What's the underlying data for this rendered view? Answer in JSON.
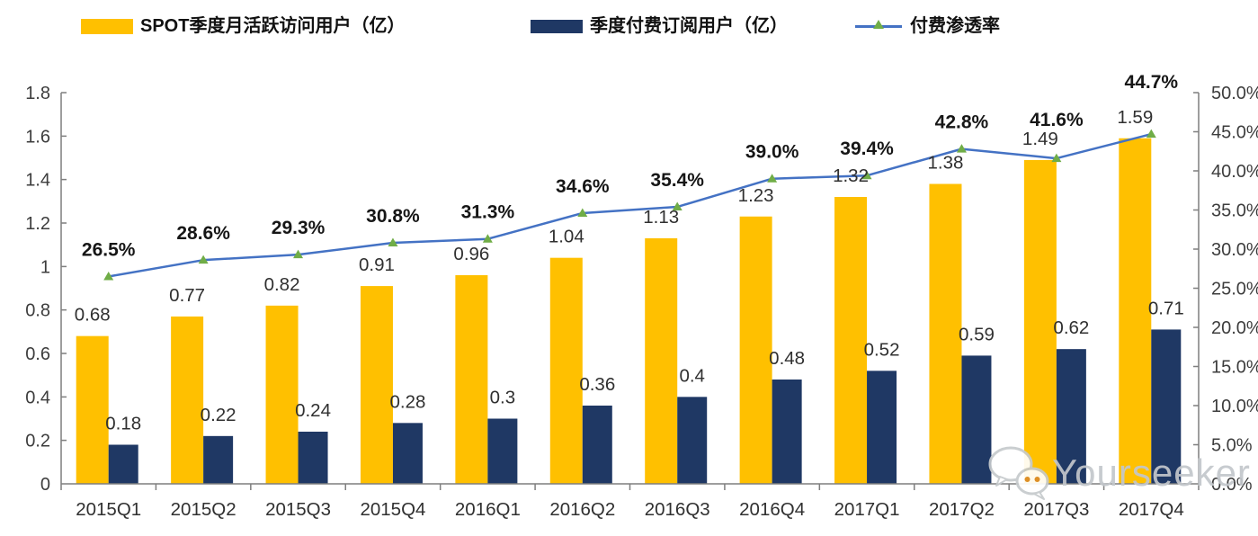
{
  "legend": {
    "items": [
      {
        "label": "SPOT季度月活跃访问用户（亿）",
        "swatch": "bar",
        "color": "#FFC000"
      },
      {
        "label": "季度付费订阅用户（亿）",
        "swatch": "bar",
        "color": "#1F3864"
      },
      {
        "label": "付费渗透率",
        "swatch": "line",
        "color": "#4472C4",
        "marker_color": "#70AD47"
      }
    ]
  },
  "watermark": {
    "text": "Yourseeker",
    "icon": "wechat-icon"
  },
  "chart_data": {
    "type": "combo-bar-line",
    "categories": [
      "2015Q1",
      "2015Q2",
      "2015Q3",
      "2015Q4",
      "2016Q1",
      "2016Q2",
      "2016Q3",
      "2016Q4",
      "2017Q1",
      "2017Q2",
      "2017Q3",
      "2017Q4"
    ],
    "series": [
      {
        "name": "SPOT季度月活跃访问用户（亿）",
        "type": "bar",
        "axis": "left",
        "color": "#FFC000",
        "values": [
          0.68,
          0.77,
          0.82,
          0.91,
          0.96,
          1.04,
          1.13,
          1.23,
          1.32,
          1.38,
          1.49,
          1.59
        ],
        "labels": [
          "0.68",
          "0.77",
          "0.82",
          "0.91",
          "0.96",
          "1.04",
          "1.13",
          "1.23",
          "1.32",
          "1.38",
          "1.49",
          "1.59"
        ]
      },
      {
        "name": "季度付费订阅用户（亿）",
        "type": "bar",
        "axis": "left",
        "color": "#1F3864",
        "values": [
          0.18,
          0.22,
          0.24,
          0.28,
          0.3,
          0.36,
          0.4,
          0.48,
          0.52,
          0.59,
          0.62,
          0.71
        ],
        "labels": [
          "0.18",
          "0.22",
          "0.24",
          "0.28",
          "0.3",
          "0.36",
          "0.4",
          "0.48",
          "0.52",
          "0.59",
          "0.62",
          "0.71"
        ]
      },
      {
        "name": "付费渗透率",
        "type": "line",
        "axis": "right",
        "color": "#4472C4",
        "marker": "triangle",
        "marker_color": "#70AD47",
        "values": [
          26.5,
          28.6,
          29.3,
          30.8,
          31.3,
          34.6,
          35.4,
          39.0,
          39.4,
          42.8,
          41.6,
          44.7
        ],
        "labels": [
          "26.5%",
          "28.6%",
          "29.3%",
          "30.8%",
          "31.3%",
          "34.6%",
          "35.4%",
          "39.0%",
          "39.4%",
          "42.8%",
          "41.6%",
          "44.7%"
        ]
      }
    ],
    "left_axis": {
      "min": 0,
      "max": 1.8,
      "ticks": [
        "0",
        "0.2",
        "0.4",
        "0.6",
        "0.8",
        "1",
        "1.2",
        "1.4",
        "1.6",
        "1.8"
      ]
    },
    "right_axis": {
      "min": 0,
      "max": 50,
      "ticks": [
        "0.0%",
        "5.0%",
        "10.0%",
        "15.0%",
        "20.0%",
        "25.0%",
        "30.0%",
        "35.0%",
        "40.0%",
        "45.0%",
        "50.0%"
      ]
    },
    "grid": false,
    "legend_position": "top",
    "axis_color": "#7F7F7F"
  }
}
